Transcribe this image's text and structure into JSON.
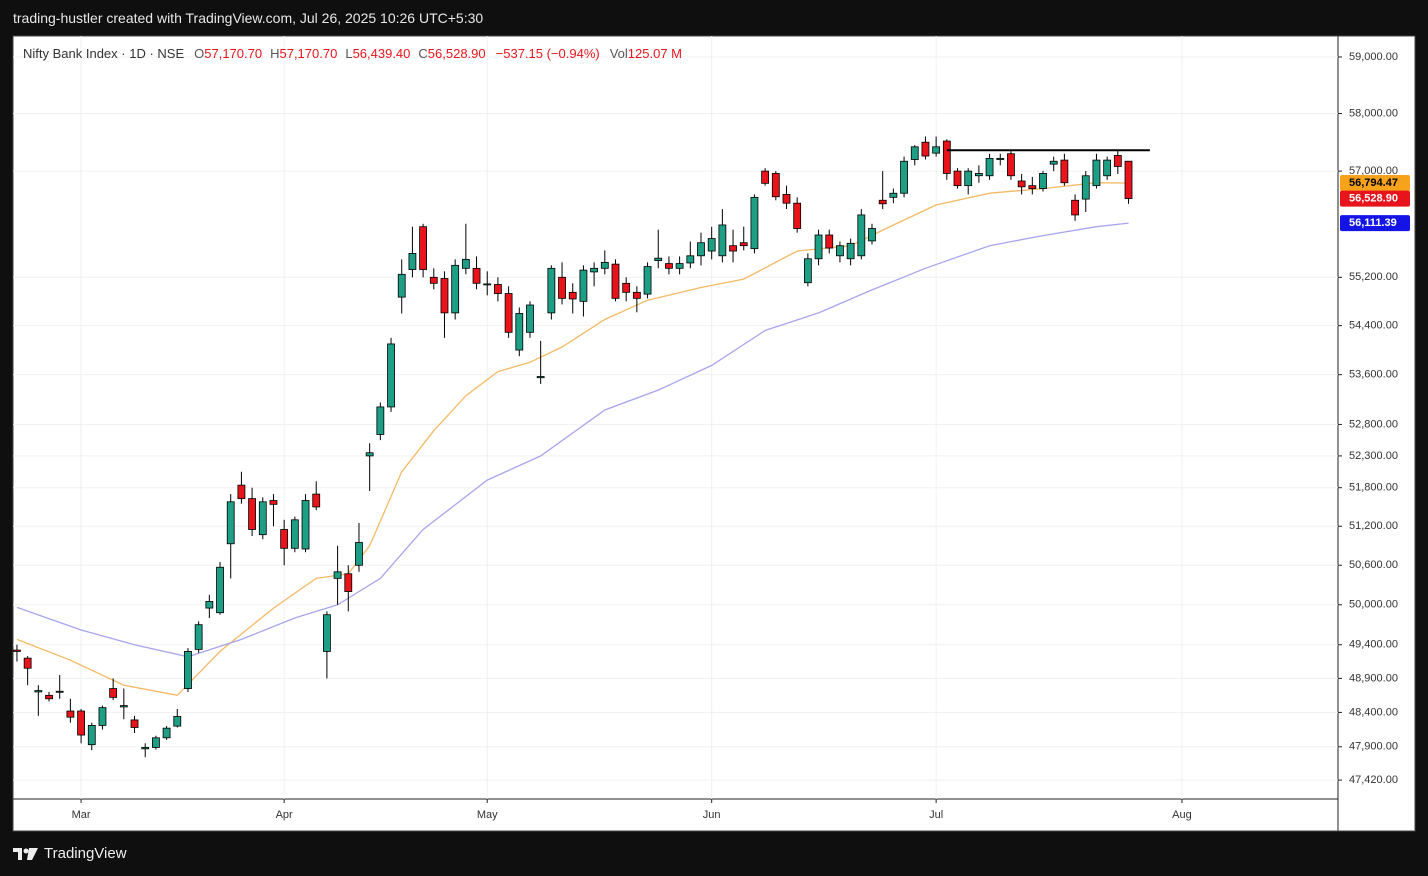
{
  "header": "trading-hustler created with TradingView.com, Jul 26, 2025 10:26 UTC+5:30",
  "footer": {
    "brand": "TradingView"
  },
  "legend": {
    "name": "Nifty Bank Index · 1D · NSE",
    "items": [
      {
        "key": "O",
        "text": "57,170.70"
      },
      {
        "key": "H",
        "text": "57,170.70"
      },
      {
        "key": "L",
        "text": "56,439.40"
      },
      {
        "key": "C",
        "text": "56,528.90"
      }
    ],
    "change": "−537.15 (−0.94%)",
    "vol_key": "Vol",
    "vol": "125.07 M"
  },
  "chart_data": {
    "type": "candlestick",
    "log_scale": true,
    "grid": true,
    "up_color": "#1e9e84",
    "down_color": "#e8141c",
    "xlim": [
      -0.37,
      123.6
    ],
    "ylim": [
      47150,
      59375
    ],
    "xticks": [
      {
        "value": 6,
        "label": "Mar"
      },
      {
        "value": 25,
        "label": "Apr"
      },
      {
        "value": 44,
        "label": "May"
      },
      {
        "value": 65,
        "label": "Jun"
      },
      {
        "value": 86,
        "label": "Jul"
      },
      {
        "value": 109,
        "label": "Aug"
      }
    ],
    "yticks": [
      {
        "value": 59000,
        "label": "59,000.00"
      },
      {
        "value": 58000,
        "label": "58,000.00"
      },
      {
        "value": 57000,
        "label": "57,000.00"
      },
      {
        "value": 55200,
        "label": "55,200.00"
      },
      {
        "value": 54400,
        "label": "54,400.00"
      },
      {
        "value": 53600,
        "label": "53,600.00"
      },
      {
        "value": 52800,
        "label": "52,800.00"
      },
      {
        "value": 52300,
        "label": "52,300.00"
      },
      {
        "value": 51800,
        "label": "51,800.00"
      },
      {
        "value": 51200,
        "label": "51,200.00"
      },
      {
        "value": 50600,
        "label": "50,600.00"
      },
      {
        "value": 50000,
        "label": "50,000.00"
      },
      {
        "value": 49400,
        "label": "49,400.00"
      },
      {
        "value": 48900,
        "label": "48,900.00"
      },
      {
        "value": 48400,
        "label": "48,400.00"
      },
      {
        "value": 47900,
        "label": "47,900.00"
      },
      {
        "value": 47420,
        "label": "47,420.00"
      }
    ],
    "open": [
      49320,
      49200,
      48700,
      48650,
      48700,
      48420,
      48420,
      47930,
      48210,
      48750,
      48480,
      48290,
      47870,
      47890,
      48030,
      48200,
      48750,
      49330,
      49950,
      49880,
      50930,
      51840,
      51630,
      51070,
      51600,
      51150,
      50860,
      50850,
      51700,
      49300,
      50400,
      50470,
      50600,
      52300,
      52640,
      53080,
      54870,
      55330,
      56050,
      55200,
      55180,
      54610,
      55350,
      55350,
      55080,
      55080,
      54930,
      54000,
      54290,
      53550,
      54610,
      55200,
      54950,
      54800,
      55290,
      55350,
      55420,
      55100,
      54950,
      54920,
      55480,
      55430,
      55350,
      55440,
      55560,
      55640,
      55560,
      55730,
      55780,
      55680,
      57000,
      56960,
      56600,
      56450,
      55110,
      55510,
      55910,
      55560,
      55510,
      55560,
      55810,
      56500,
      56550,
      56620,
      57200,
      57500,
      57310,
      57520,
      57000,
      56750,
      56920,
      56920,
      57200,
      57300,
      56830,
      56750,
      56700,
      57120,
      57190,
      56500,
      56520,
      56750,
      56920,
      57270,
      57170.7
    ],
    "high": [
      49400,
      49230,
      48800,
      48700,
      48950,
      48600,
      48450,
      48250,
      48500,
      48900,
      48750,
      48350,
      47950,
      48060,
      48200,
      48450,
      49350,
      49750,
      50150,
      50650,
      51700,
      52050,
      51800,
      51650,
      51700,
      51300,
      51350,
      51700,
      51900,
      49900,
      50900,
      50600,
      51250,
      52500,
      53150,
      54200,
      55500,
      56050,
      56100,
      55350,
      55300,
      55500,
      56100,
      55550,
      55300,
      55200,
      55050,
      54700,
      54800,
      54150,
      55400,
      55450,
      55100,
      55400,
      55450,
      55650,
      55500,
      55200,
      55050,
      55450,
      56000,
      55550,
      55550,
      55800,
      55950,
      56050,
      56350,
      56000,
      56050,
      56600,
      57050,
      57000,
      56750,
      56550,
      55600,
      56000,
      56000,
      55800,
      55850,
      56350,
      56100,
      57000,
      56700,
      57250,
      57450,
      57600,
      57600,
      57550,
      57050,
      57050,
      57100,
      57300,
      57300,
      57350,
      56950,
      56900,
      57000,
      57250,
      57300,
      56600,
      57000,
      57300,
      57250,
      57350,
      57170.7
    ],
    "low": [
      49150,
      48800,
      48350,
      48560,
      48600,
      48250,
      47950,
      47850,
      48150,
      48580,
      48300,
      48100,
      47750,
      47860,
      48000,
      48180,
      48700,
      49280,
      49800,
      49850,
      50400,
      51550,
      51050,
      51000,
      51200,
      50600,
      50800,
      50800,
      51450,
      48900,
      50000,
      49900,
      50500,
      51750,
      52550,
      53000,
      54600,
      55200,
      55200,
      55000,
      54200,
      54500,
      55250,
      55000,
      54900,
      54800,
      54200,
      53900,
      54200,
      53450,
      54500,
      54750,
      54600,
      54550,
      55050,
      55250,
      54800,
      54800,
      54620,
      54850,
      55350,
      55250,
      55250,
      55350,
      55400,
      55500,
      55450,
      55450,
      55650,
      55600,
      56750,
      56500,
      56350,
      55950,
      55050,
      55400,
      55600,
      55450,
      55400,
      55500,
      55750,
      56350,
      56450,
      56550,
      57100,
      57200,
      57250,
      56850,
      56700,
      56600,
      56800,
      56850,
      57100,
      56850,
      56600,
      56600,
      56650,
      57000,
      56750,
      56150,
      56300,
      56700,
      56850,
      56950,
      56439.4
    ],
    "close": [
      49300,
      49050,
      48720,
      48600,
      48710,
      48330,
      48070,
      48210,
      48470,
      48620,
      48500,
      48180,
      47890,
      48030,
      48170,
      48340,
      49300,
      49700,
      50050,
      50570,
      51580,
      51630,
      51150,
      51580,
      51540,
      50860,
      51300,
      51600,
      51500,
      49850,
      50500,
      50200,
      50950,
      52350,
      53080,
      54100,
      55250,
      55600,
      55330,
      55100,
      54610,
      55400,
      55500,
      55100,
      55090,
      54930,
      54290,
      54600,
      54740,
      53570,
      55350,
      54850,
      54840,
      55320,
      55350,
      55450,
      54850,
      54950,
      54850,
      55380,
      55520,
      55350,
      55430,
      55560,
      55780,
      55850,
      56080,
      55640,
      55730,
      56550,
      56790,
      56560,
      56450,
      56020,
      55510,
      55910,
      55690,
      55730,
      55770,
      56250,
      56020,
      56440,
      56620,
      57170,
      57420,
      57260,
      57420,
      56960,
      56750,
      57000,
      56960,
      57220,
      57220,
      56920,
      56730,
      56700,
      56960,
      57170,
      56800,
      56250,
      56920,
      57190,
      57190,
      57080,
      56528.9
    ],
    "series": [
      {
        "color": "#f5b965",
        "x": [
          0,
          5,
          10,
          15,
          19,
          24,
          28,
          31,
          33,
          36,
          39,
          42,
          45,
          48,
          51,
          55,
          59,
          64,
          68,
          73,
          78,
          82,
          86,
          91,
          96,
          101,
          104
        ],
        "values": [
          49480,
          49170,
          48800,
          48650,
          49300,
          49950,
          50400,
          50470,
          50900,
          52050,
          52700,
          53260,
          53650,
          53800,
          54050,
          54500,
          54820,
          55030,
          55170,
          55640,
          55730,
          56080,
          56420,
          56620,
          56700,
          56800,
          56794.47
        ]
      },
      {
        "color": "#a9a4f0",
        "x": [
          0,
          6,
          11,
          16,
          21,
          26,
          30,
          34,
          38,
          44,
          49,
          55,
          60,
          65,
          70,
          75,
          80,
          85,
          91,
          96,
          101,
          104
        ],
        "values": [
          49960,
          49620,
          49400,
          49220,
          49480,
          49800,
          50000,
          50400,
          51150,
          51920,
          52300,
          53030,
          53350,
          53750,
          54320,
          54610,
          54990,
          55350,
          55730,
          55900,
          56050,
          56111.39
        ]
      }
    ],
    "hline": {
      "value": 57360,
      "x": [
        87,
        106
      ],
      "color": "#000000"
    },
    "price_labels": [
      {
        "value": 56794.47,
        "label": "56,794.47",
        "color": "#f7a21b",
        "text_color": "#000000"
      },
      {
        "value": 56528.9,
        "label": "56,528.90",
        "color": "#e8141c",
        "text_color": "#ffffff"
      },
      {
        "value": 56111.39,
        "label": "56,111.39",
        "color": "#1414e6",
        "text_color": "#ffffff"
      }
    ]
  }
}
